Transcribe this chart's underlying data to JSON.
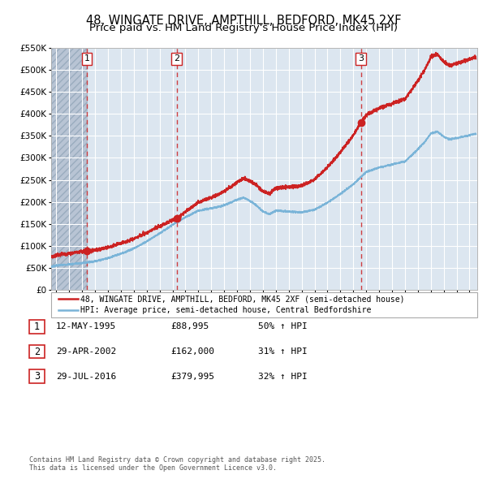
{
  "title": "48, WINGATE DRIVE, AMPTHILL, BEDFORD, MK45 2XF",
  "subtitle": "Price paid vs. HM Land Registry's House Price Index (HPI)",
  "legend_line1": "48, WINGATE DRIVE, AMPTHILL, BEDFORD, MK45 2XF (semi-detached house)",
  "legend_line2": "HPI: Average price, semi-detached house, Central Bedfordshire",
  "footer_line1": "Contains HM Land Registry data © Crown copyright and database right 2025.",
  "footer_line2": "This data is licensed under the Open Government Licence v3.0.",
  "purchases": [
    {
      "num": 1,
      "date": "12-MAY-1995",
      "price": 88995,
      "price_str": "£88,995",
      "pct": "50% ↑ HPI",
      "year": 1995.36
    },
    {
      "num": 2,
      "date": "29-APR-2002",
      "price": 162000,
      "price_str": "£162,000",
      "pct": "31% ↑ HPI",
      "year": 2002.33
    },
    {
      "num": 3,
      "date": "29-JUL-2016",
      "price": 379995,
      "price_str": "£379,995",
      "pct": "32% ↑ HPI",
      "year": 2016.58
    }
  ],
  "hpi_color": "#7ab4d8",
  "price_color": "#cc2222",
  "marker_color": "#cc2222",
  "vline_color": "#cc2222",
  "ylim_max": 550000,
  "ytick_step": 50000,
  "xlim_start": 1992.6,
  "xlim_end": 2025.6,
  "bg_color": "#dce6f0",
  "grid_color": "#ffffff",
  "hatch_color": "#b8c4d4"
}
